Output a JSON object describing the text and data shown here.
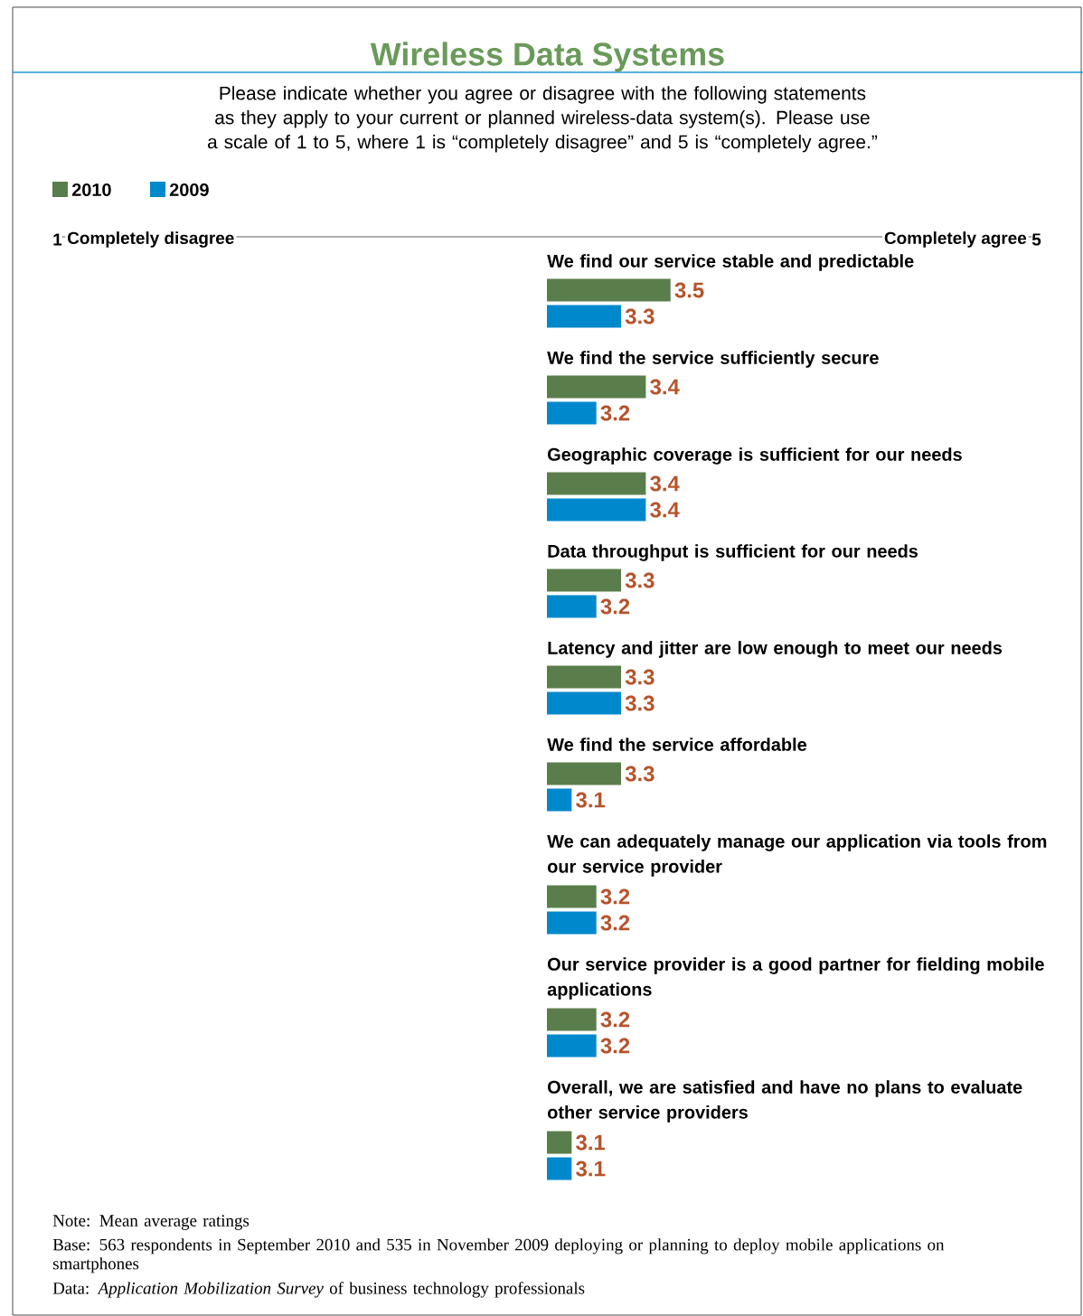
{
  "chart_data": {
    "type": "bar",
    "orientation": "horizontal",
    "title": "Wireless Data Systems",
    "subtitle": "Please indicate whether you agree or disagree with the following statements as they apply to your current or planned wireless-data system(s). Please use a scale of 1 to 5, where 1 is “completely disagree” and 5 is “completely agree.”",
    "categories": [
      "We find our service stable and predictable",
      "We find the service sufficiently secure",
      "Geographic coverage is sufficient for our needs",
      "Data throughput is sufficient for our needs",
      "Latency and jitter are low enough to meet our needs",
      "We find the service affordable",
      "We can adequately manage our application via tools from our service provider",
      "Our service provider is a good partner for fielding mobile applications",
      "Overall, we are satisfied and have no plans to evaluate other service providers"
    ],
    "series": [
      {
        "name": "2010",
        "color": "#5a7e4b",
        "base": [
          3,
          3,
          3,
          3,
          3,
          3,
          3,
          3,
          3
        ],
        "values": [
          0.5,
          0.4,
          0.4,
          0.3,
          0.3,
          0.3,
          0.2,
          0.2,
          0.1
        ],
        "value_labels": [
          "3.5",
          "3.4",
          "3.4",
          "3.3",
          "3.3",
          "3.3",
          "3.2",
          "3.2",
          "3.1"
        ]
      },
      {
        "name": "2009",
        "color": "#0088cc",
        "base": [
          3,
          3,
          3,
          3,
          3,
          3,
          3,
          3,
          3
        ],
        "values": [
          0.3,
          0.2,
          0.4,
          0.2,
          0.3,
          0.1,
          0.2,
          0.2,
          0.1
        ],
        "value_labels": [
          "3.3",
          "3.2",
          "3.4",
          "3.2",
          "3.3",
          "3.1",
          "3.2",
          "3.2",
          "3.1"
        ]
      }
    ],
    "xlim": [
      1,
      5
    ],
    "xticks": [
      1,
      5
    ],
    "legend": "top left",
    "annotations": [
      "Completely disagree",
      "Completely agree",
      "Note: Mean average ratings",
      "Base: 563 respondents in September 2010 and 535 in November 2009 deploying or planning to deploy mobile applications on smartphones",
      "Data: *Application Mobilization Survey* of business technology professionals"
    ]
  }
}
